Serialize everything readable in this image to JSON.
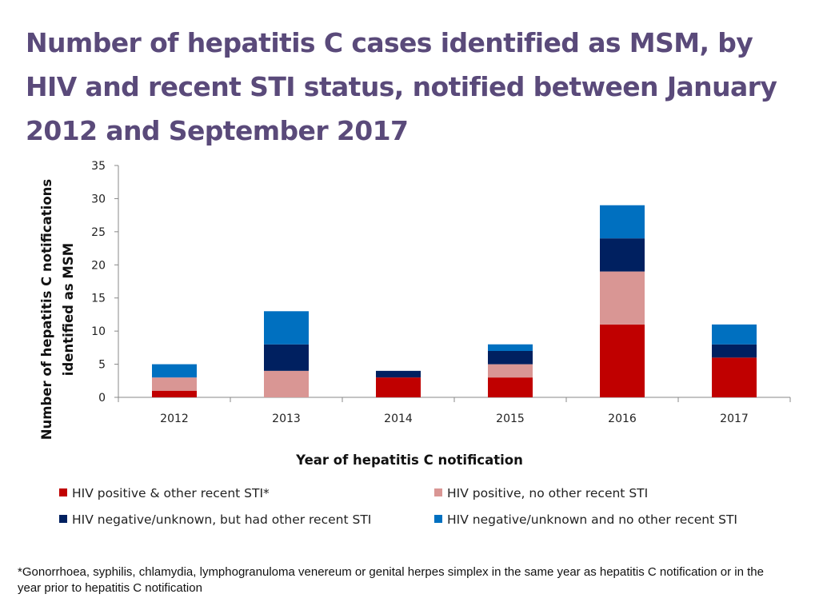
{
  "title": "Number of hepatitis C cases identified as MSM, by HIV and recent STI status, notified between January 2012 and September 2017",
  "footnote": "*Gonorrhoea, syphilis, chlamydia, lymphogranuloma venereum or genital herpes simplex in the same year as hepatitis C notification or in the year prior to hepatitis C notification",
  "chart_data": {
    "type": "bar",
    "stacked": true,
    "title": "Number of hepatitis C cases identified as MSM, by HIV and recent STI status, notified between January 2012 and September 2017",
    "xlabel": "Year of hepatitis C notification",
    "ylabel_lines": [
      "Number of hepatitis C notifications",
      "identified as MSM"
    ],
    "ylim": [
      0,
      35
    ],
    "yticks": [
      0,
      5,
      10,
      15,
      20,
      25,
      30,
      35
    ],
    "categories": [
      "2012",
      "2013",
      "2014",
      "2015",
      "2016",
      "2017"
    ],
    "series": [
      {
        "name": "HIV positive & other recent STI*",
        "color": "#c00000",
        "values": [
          1,
          0,
          3,
          3,
          11,
          6
        ]
      },
      {
        "name": "HIV positive, no other recent STI",
        "color": "#d99694",
        "values": [
          2,
          4,
          0,
          2,
          8,
          0
        ]
      },
      {
        "name": "HIV negative/unknown, but had other recent STI",
        "color": "#002060",
        "values": [
          0,
          4,
          1,
          2,
          5,
          2
        ]
      },
      {
        "name": "HIV negative/unknown and no other recent STI",
        "color": "#0070c0",
        "values": [
          2,
          5,
          0,
          1,
          5,
          3
        ]
      }
    ],
    "legend_position": "bottom"
  }
}
